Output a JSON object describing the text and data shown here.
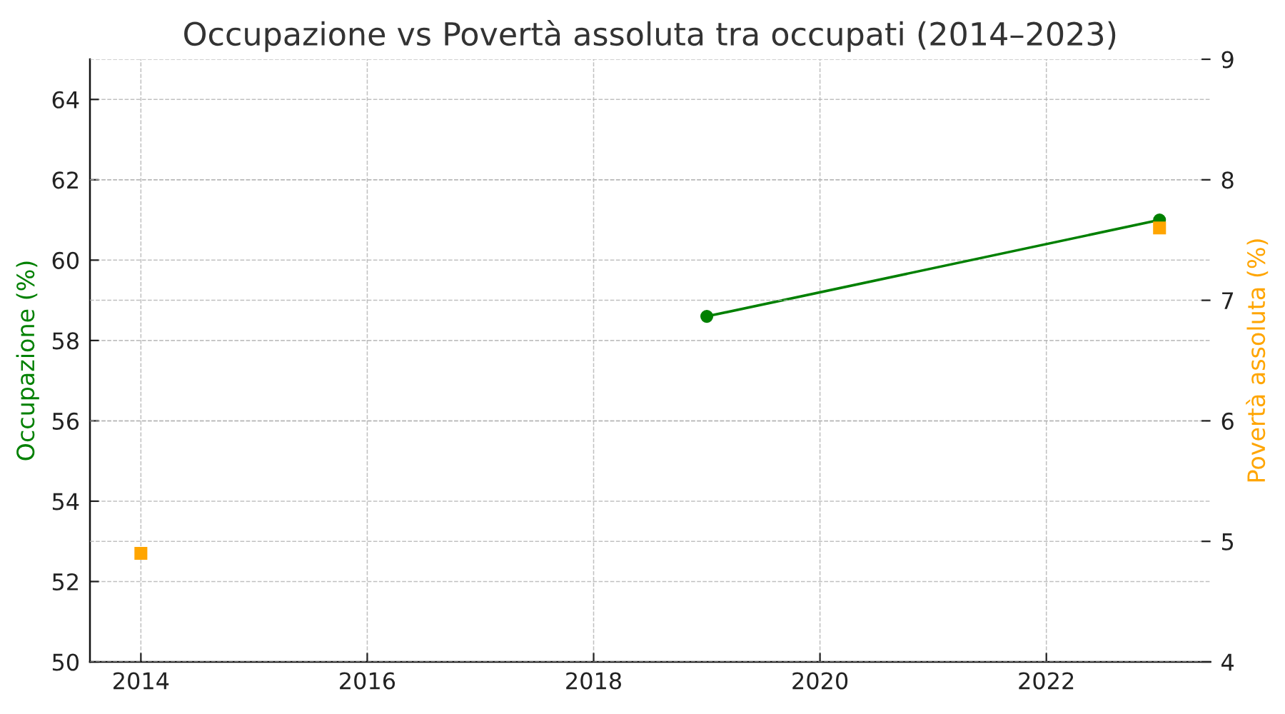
{
  "chart_data": {
    "type": "line",
    "title": "Occupazione vs Povertà assoluta tra occupati (2014–2023)",
    "ylabel": "Occupazione (%)",
    "y2label": "Povertà assoluta (%)",
    "xlim": [
      2013.55,
      2023.45
    ],
    "xticks": [
      2014,
      2016,
      2018,
      2020,
      2022
    ],
    "ylim": [
      50,
      65
    ],
    "yticks": [
      50,
      52,
      54,
      56,
      58,
      60,
      62,
      64
    ],
    "y2lim": [
      4,
      9
    ],
    "y2ticks": [
      4,
      5,
      6,
      7,
      8,
      9
    ],
    "grid": true,
    "line_style": "solid",
    "series": [
      {
        "color": "#008000",
        "marker": "circle",
        "x": [
          2019,
          2023
        ],
        "values": [
          58.6,
          61.0
        ]
      },
      {
        "type": "scatter",
        "axis": "y2",
        "color": "#ffa500",
        "marker": "square",
        "x": [
          2014,
          2023
        ],
        "values": [
          4.9,
          7.6
        ]
      }
    ]
  }
}
